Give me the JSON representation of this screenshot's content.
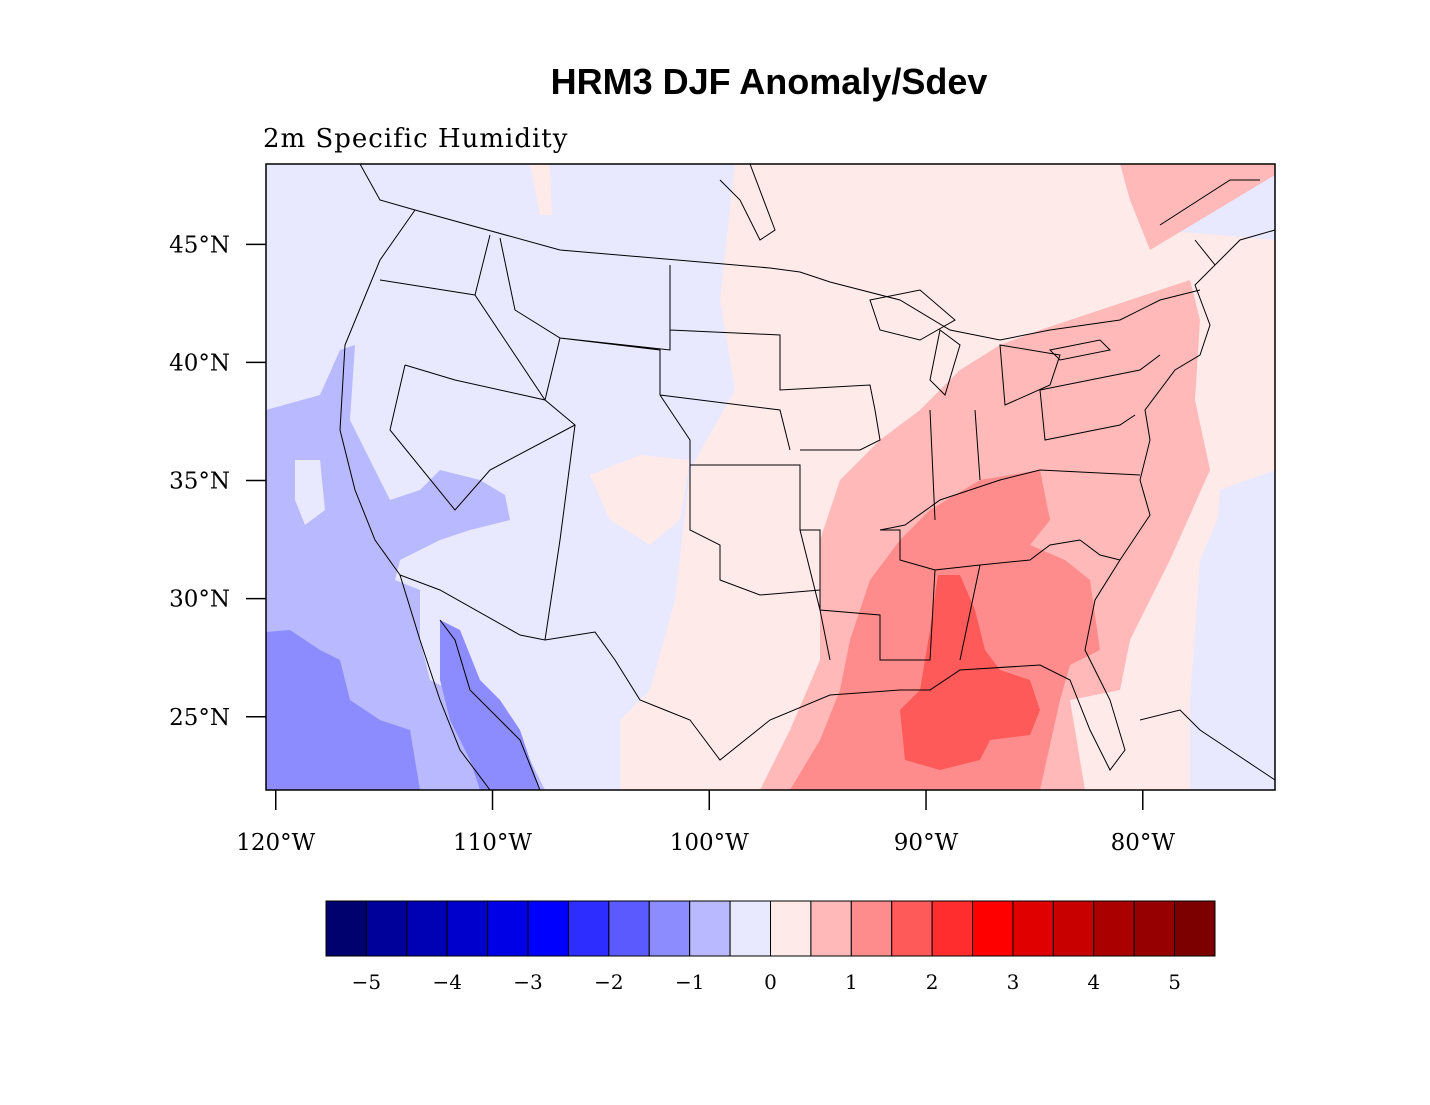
{
  "title": "HRM3 DJF Anomaly/Sdev",
  "subtitle": "2m Specific Humidity",
  "lat_ticks": [
    {
      "value": 45,
      "label": "45°N"
    },
    {
      "value": 40,
      "label": "40°N"
    },
    {
      "value": 35,
      "label": "35°N"
    },
    {
      "value": 30,
      "label": "30°N"
    },
    {
      "value": 25,
      "label": "25°N"
    }
  ],
  "lon_ticks": [
    {
      "value": -120,
      "label": "120°W"
    },
    {
      "value": -110,
      "label": "110°W"
    },
    {
      "value": -100,
      "label": "100°W"
    },
    {
      "value": -90,
      "label": "90°W"
    },
    {
      "value": -80,
      "label": "80°W"
    }
  ],
  "colorbar": {
    "colors": [
      "#00006e",
      "#00009a",
      "#0000b4",
      "#0000cd",
      "#0000e6",
      "#0000ff",
      "#2d2dff",
      "#5a5aff",
      "#8c8cff",
      "#b9b9ff",
      "#e8e8ff",
      "#ffeaea",
      "#ffb9b9",
      "#ff8c8c",
      "#ff5a5a",
      "#ff2d2d",
      "#ff0000",
      "#e10000",
      "#c80000",
      "#aa0000",
      "#960000",
      "#7d0000"
    ],
    "labels": [
      "−5",
      "−4",
      "−3",
      "−2",
      "−1",
      "0",
      "1",
      "2",
      "3",
      "4",
      "5"
    ]
  }
}
